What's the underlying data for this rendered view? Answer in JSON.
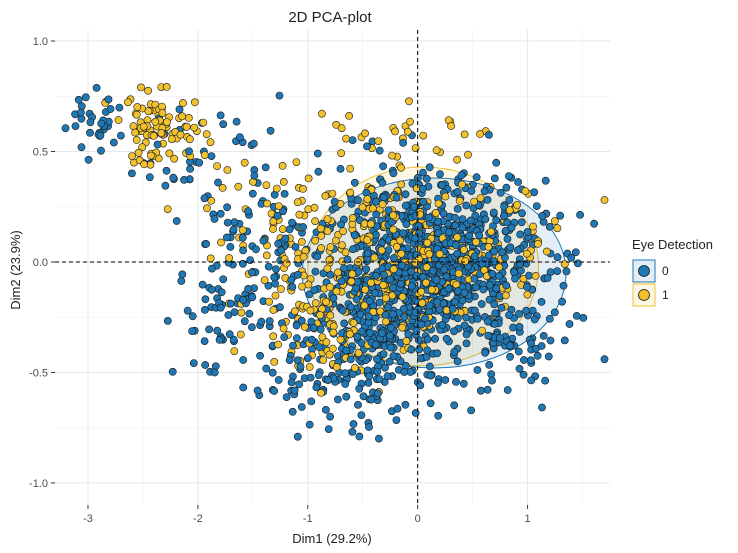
{
  "chart_data": {
    "type": "scatter",
    "title": "2D PCA-plot",
    "xlabel": "Dim1 (29.2%)",
    "ylabel": "Dim2 (23.9%)",
    "xlim": [
      -3.3,
      1.75
    ],
    "ylim": [
      -1.1,
      1.05
    ],
    "x_ticks": [
      -3,
      -2,
      -1,
      0,
      1
    ],
    "y_ticks": [
      -1.0,
      -0.5,
      0.0,
      0.5,
      1.0
    ],
    "x_tick_labels": [
      "-3",
      "-2",
      "-1",
      "0",
      "1"
    ],
    "y_tick_labels": [
      "-1.0",
      "-0.5",
      "0.0",
      "0.5",
      "1.0"
    ],
    "grid": true,
    "reference_lines": {
      "x": 0,
      "y": 0,
      "style": "dashed"
    },
    "legend": {
      "title": "Eye Detection",
      "placement": "right",
      "entries": [
        {
          "label": "0",
          "color": "#1f77b4"
        },
        {
          "label": "1",
          "color": "#f2c12e"
        }
      ]
    },
    "series": [
      {
        "name": "0",
        "color": "#1f77b4",
        "ellipse": {
          "center": [
            0.15,
            -0.05
          ],
          "radii": [
            1.2,
            0.43
          ]
        },
        "clusters": [
          {
            "center": [
              0.15,
              -0.02
            ],
            "spread": [
              0.5,
              0.2
            ],
            "n": 950
          },
          {
            "center": [
              -0.4,
              -0.3
            ],
            "spread": [
              0.35,
              0.15
            ],
            "n": 120
          },
          {
            "center": [
              -2.9,
              0.63
            ],
            "spread": [
              0.12,
              0.06
            ],
            "n": 30
          },
          {
            "center": [
              -2.0,
              0.5
            ],
            "spread": [
              0.4,
              0.12
            ],
            "n": 45
          },
          {
            "center": [
              -1.6,
              -0.2
            ],
            "spread": [
              0.3,
              0.15
            ],
            "n": 90
          },
          {
            "center": [
              -0.7,
              -0.55
            ],
            "spread": [
              0.45,
              0.12
            ],
            "n": 110
          },
          {
            "center": [
              -1.5,
              0.15
            ],
            "spread": [
              0.3,
              0.12
            ],
            "n": 40
          },
          {
            "center": [
              0.9,
              -0.45
            ],
            "spread": [
              0.25,
              0.12
            ],
            "n": 40
          }
        ]
      },
      {
        "name": "1",
        "color": "#f2c12e",
        "ellipse": {
          "center": [
            0.05,
            -0.02
          ],
          "radii": [
            1.05,
            0.45
          ]
        },
        "clusters": [
          {
            "center": [
              -2.35,
              0.6
            ],
            "spread": [
              0.22,
              0.08
            ],
            "n": 90
          },
          {
            "center": [
              -1.2,
              0.2
            ],
            "spread": [
              0.35,
              0.15
            ],
            "n": 60
          },
          {
            "center": [
              -0.2,
              0.0
            ],
            "spread": [
              0.45,
              0.2
            ],
            "n": 280
          },
          {
            "center": [
              -0.9,
              -0.25
            ],
            "spread": [
              0.3,
              0.12
            ],
            "n": 80
          },
          {
            "center": [
              -0.3,
              0.6
            ],
            "spread": [
              0.35,
              0.08
            ],
            "n": 25
          },
          {
            "center": [
              0.8,
              0.1
            ],
            "spread": [
              0.3,
              0.15
            ],
            "n": 40
          }
        ]
      }
    ]
  }
}
